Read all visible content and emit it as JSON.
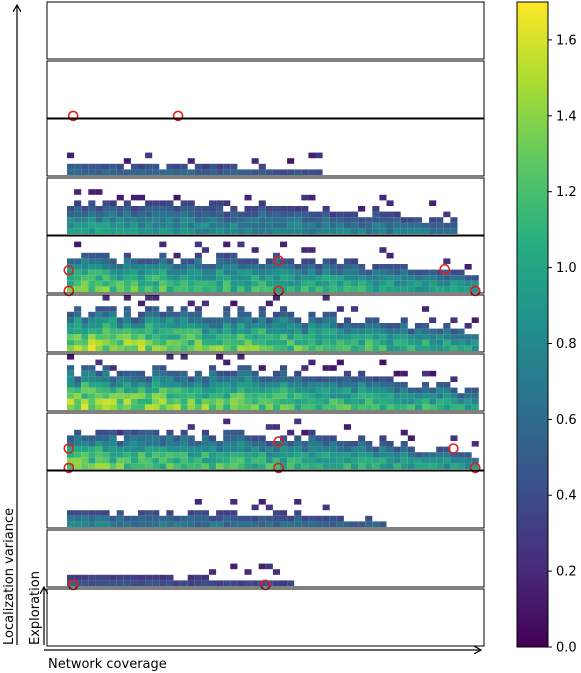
{
  "chart_data": {
    "type": "heatmap",
    "xlabel": "Network coverage",
    "ylabel_outer": "Localization variance",
    "ylabel_inner": "Exploration",
    "colorbar": {
      "colormap": "viridis",
      "range": [
        0.0,
        1.7
      ],
      "ticks": [
        0.0,
        0.2,
        0.4,
        0.6,
        0.8,
        1.0,
        1.2,
        1.4,
        1.6
      ],
      "tick_labels": [
        "0.0",
        "0.2",
        "0.4",
        "0.6",
        "0.8",
        "1.0",
        "1.2",
        "1.4",
        "1.6"
      ]
    },
    "panel_count": 11,
    "panels": [
      {
        "index": 0,
        "extent": 0.0,
        "height": 0.0,
        "level": 0.0,
        "markers": []
      },
      {
        "index": 1,
        "extent": 0.24,
        "height": 0.1,
        "level": 0.35,
        "markers": [
          [
            0.06,
            0.02
          ],
          [
            0.3,
            0.02
          ]
        ]
      },
      {
        "index": 2,
        "extent": 0.62,
        "height": 0.3,
        "level": 0.6,
        "markers": []
      },
      {
        "index": 3,
        "extent": 0.95,
        "height": 0.62,
        "level": 0.9,
        "markers": []
      },
      {
        "index": 4,
        "extent": 1.0,
        "height": 0.75,
        "level": 1.25,
        "markers": [
          [
            0.05,
            0.38
          ],
          [
            0.05,
            0.02
          ],
          [
            0.53,
            0.55
          ],
          [
            0.53,
            0.02
          ],
          [
            0.91,
            0.4
          ],
          [
            0.98,
            0.02
          ]
        ]
      },
      {
        "index": 5,
        "extent": 1.0,
        "height": 0.88,
        "level": 1.4,
        "markers": []
      },
      {
        "index": 6,
        "extent": 1.0,
        "height": 0.88,
        "level": 1.4,
        "markers": []
      },
      {
        "index": 7,
        "extent": 1.0,
        "height": 0.75,
        "level": 1.25,
        "markers": [
          [
            0.05,
            0.36
          ],
          [
            0.05,
            0.02
          ],
          [
            0.53,
            0.48
          ],
          [
            0.53,
            0.02
          ],
          [
            0.93,
            0.36
          ],
          [
            0.98,
            0.02
          ]
        ]
      },
      {
        "index": 8,
        "extent": 0.78,
        "height": 0.38,
        "level": 0.7,
        "markers": []
      },
      {
        "index": 9,
        "extent": 0.55,
        "height": 0.22,
        "level": 0.45,
        "markers": [
          [
            0.06,
            0.02
          ],
          [
            0.5,
            0.02
          ]
        ]
      },
      {
        "index": 10,
        "extent": 0.0,
        "height": 0.0,
        "level": 0.0,
        "markers": []
      }
    ]
  }
}
